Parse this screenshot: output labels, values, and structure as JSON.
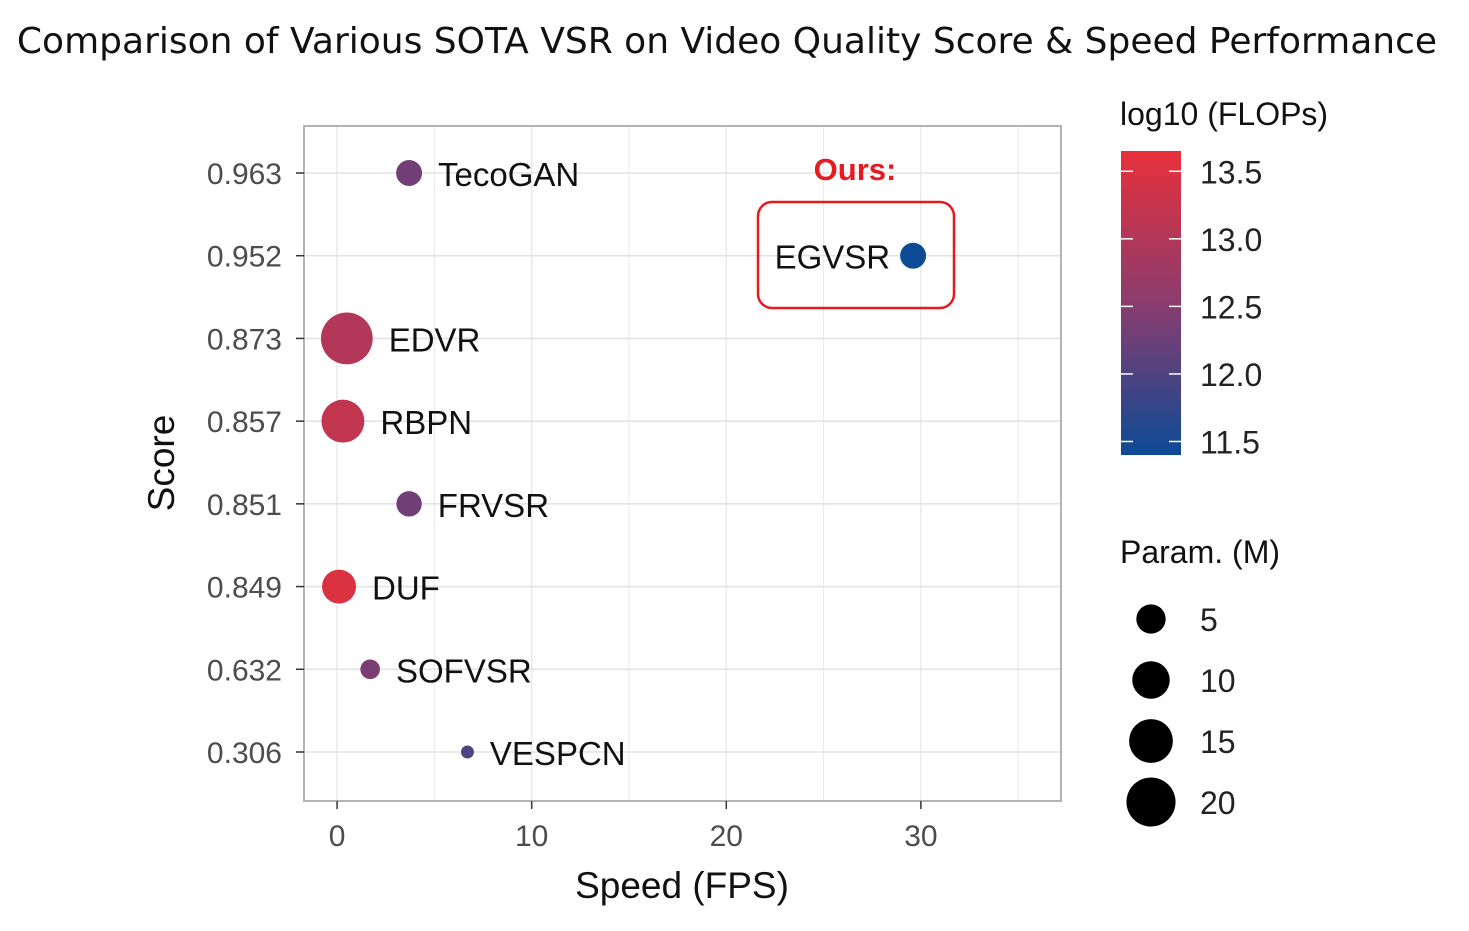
{
  "chart_data": {
    "type": "scatter",
    "title": "Comparison of Various SOTA VSR on Video Quality Score & Speed Performance",
    "xlabel": "Speed (FPS)",
    "ylabel": "Score",
    "xlim": [
      -1.7,
      37.2
    ],
    "x_ticks": [
      0,
      10,
      20,
      30
    ],
    "y_scale": "categorical (ordered by score)",
    "y_categories": [
      "0.306",
      "0.632",
      "0.849",
      "0.851",
      "0.857",
      "0.873",
      "0.952",
      "0.963"
    ],
    "grid": true,
    "points": [
      {
        "label": "TecoGAN",
        "speed": 3.7,
        "score": "0.963",
        "log10_flops": 12.3,
        "params_m": 3
      },
      {
        "label": "EGVSR",
        "speed": 29.6,
        "score": "0.952",
        "log10_flops": 11.4,
        "params_m": 3
      },
      {
        "label": "EDVR",
        "speed": 0.5,
        "score": "0.873",
        "log10_flops": 13.0,
        "params_m": 20.6
      },
      {
        "label": "RBPN",
        "speed": 0.3,
        "score": "0.857",
        "log10_flops": 13.2,
        "params_m": 12.8
      },
      {
        "label": "FRVSR",
        "speed": 3.7,
        "score": "0.851",
        "log10_flops": 12.3,
        "params_m": 2.8
      },
      {
        "label": "DUF",
        "speed": 0.1,
        "score": "0.849",
        "log10_flops": 13.5,
        "params_m": 6.8
      },
      {
        "label": "SOFVSR",
        "speed": 1.7,
        "score": "0.632",
        "log10_flops": 12.4,
        "params_m": 1.1
      },
      {
        "label": "VESPCN",
        "speed": 6.7,
        "score": "0.306",
        "log10_flops": 12.0,
        "params_m": 0.1
      }
    ],
    "annotation": {
      "text": "Ours:",
      "target": "EGVSR",
      "color": "#e8191f"
    },
    "color_legend": {
      "title": "log10 (FLOPs)",
      "ticks": [
        11.5,
        12.0,
        12.5,
        13.0,
        13.5
      ],
      "range": [
        11.4,
        13.65
      ],
      "low_color": "#0c4a95",
      "mid_color": "#8a3c6e",
      "high_color": "#e8303a",
      "placement": "right"
    },
    "size_legend": {
      "title": "Param. (M)",
      "values": [
        5,
        10,
        15,
        20
      ],
      "placement": "right"
    }
  }
}
